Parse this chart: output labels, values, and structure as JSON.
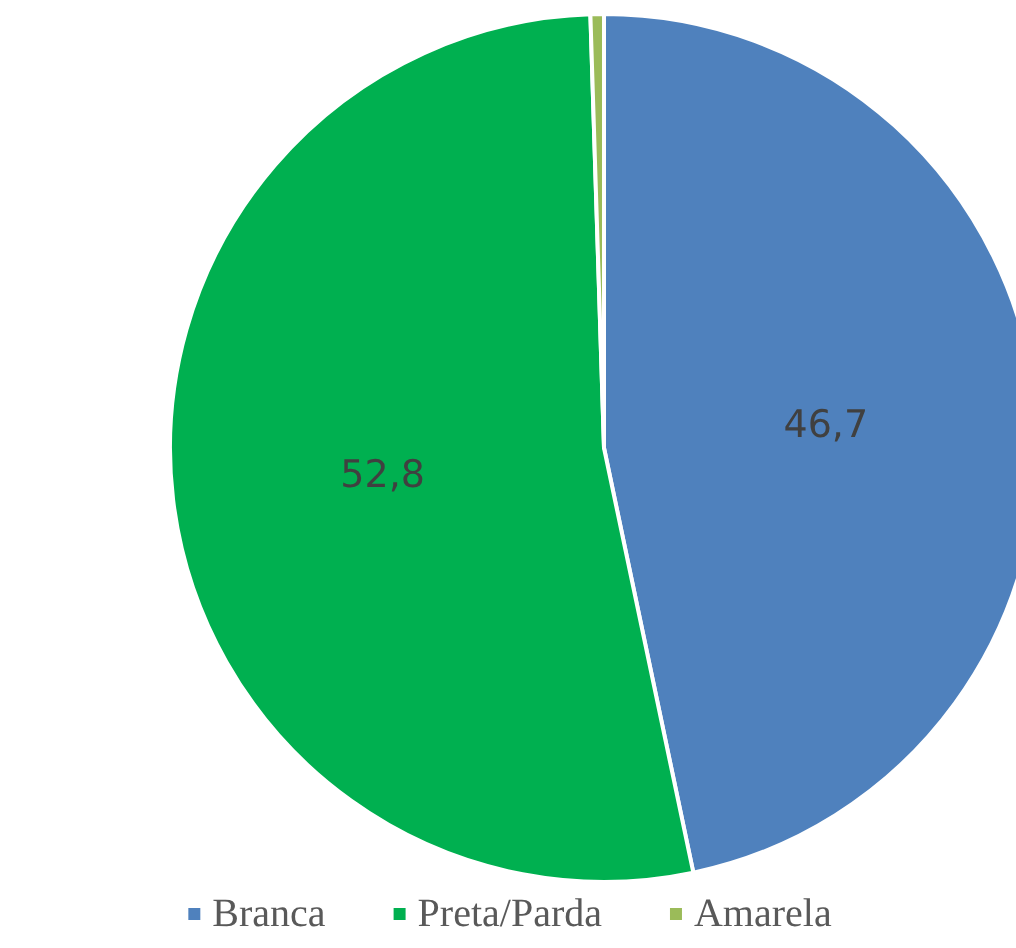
{
  "chart_data": {
    "type": "pie",
    "categories": [
      "Branca",
      "Preta/Parda",
      "Amarela"
    ],
    "values": [
      46.7,
      52.8,
      0.5
    ],
    "colors": [
      "#4f81bd",
      "#00b050",
      "#9bbb59"
    ],
    "value_labels": [
      "46,7",
      "52,8",
      null
    ],
    "legend": "bottom"
  }
}
